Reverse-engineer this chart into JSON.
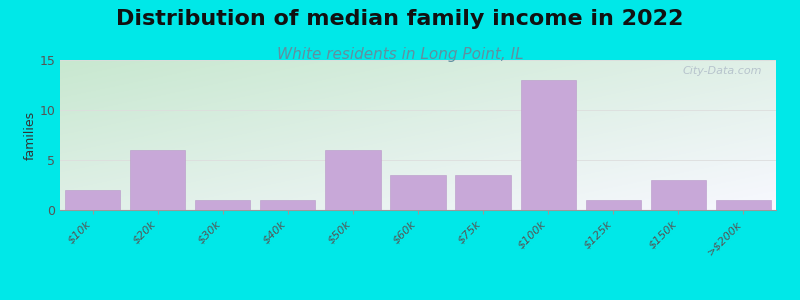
{
  "title": "Distribution of median family income in 2022",
  "subtitle": "White residents in Long Point, IL",
  "ylabel": "families",
  "categories": [
    "$10k",
    "$20k",
    "$30k",
    "$40k",
    "$50k",
    "$60k",
    "$75k",
    "$100k",
    "$125k",
    "$150k",
    ">$200k"
  ],
  "values": [
    2,
    6,
    1,
    1,
    6,
    3.5,
    3.5,
    13,
    1,
    3,
    1
  ],
  "ylim": [
    0,
    15
  ],
  "yticks": [
    0,
    5,
    10,
    15
  ],
  "bar_color": "#c8a8d8",
  "bar_edge_color": "#b898c8",
  "background_color": "#00e8e8",
  "plot_bg_topleft": "#c8e8d0",
  "plot_bg_bottomright": "#f8f8ff",
  "title_fontsize": 16,
  "subtitle_fontsize": 11,
  "subtitle_color": "#6090a0",
  "ylabel_fontsize": 9,
  "watermark_text": "City-Data.com",
  "watermark_color": "#b0bcc8",
  "grid_color": "#dddddd",
  "tick_color": "#555555"
}
